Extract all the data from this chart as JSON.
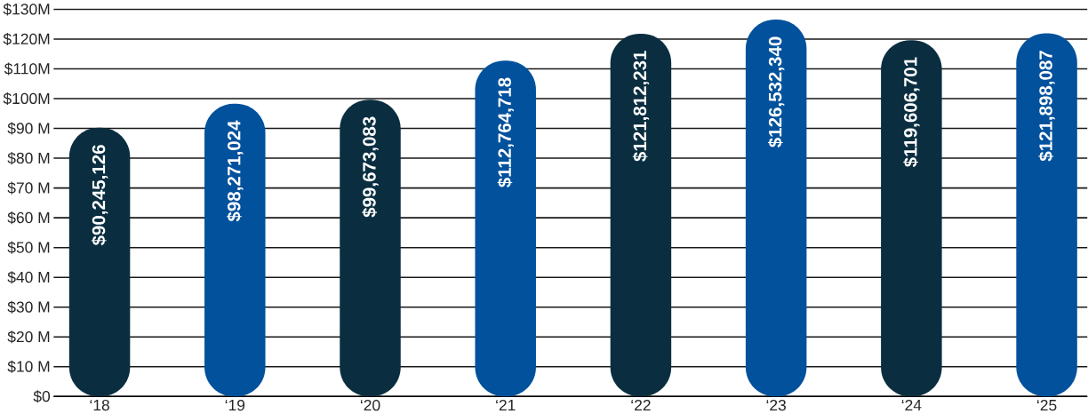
{
  "chart_data": {
    "type": "bar",
    "categories": [
      "‘18",
      "‘19",
      "‘20",
      "‘21",
      "‘22",
      "‘23",
      "‘24",
      "‘25"
    ],
    "values": [
      90245126,
      98271024,
      99673083,
      112764718,
      121812231,
      126532340,
      119606701,
      121898087
    ],
    "value_labels": [
      "$90,245,126",
      "$98,271,024",
      "$99,673,083",
      "$112,764,718",
      "$121,812,231",
      "$126,532,340",
      "$119,606,701",
      "$121,898,087"
    ],
    "colors": [
      "#0a2e40",
      "#02519c",
      "#0a2e40",
      "#02519c",
      "#0a2e40",
      "#02519c",
      "#0a2e40",
      "#02519c"
    ],
    "ylim": [
      0,
      130000000
    ],
    "yticks": [
      {
        "value": 0,
        "label": "$0"
      },
      {
        "value": 10000000,
        "label": "$10 M"
      },
      {
        "value": 20000000,
        "label": "$20 M"
      },
      {
        "value": 30000000,
        "label": "$30 M"
      },
      {
        "value": 40000000,
        "label": "$40 M"
      },
      {
        "value": 50000000,
        "label": "$50 M"
      },
      {
        "value": 60000000,
        "label": "$60 M"
      },
      {
        "value": 70000000,
        "label": "$70 M"
      },
      {
        "value": 80000000,
        "label": "$80 M"
      },
      {
        "value": 90000000,
        "label": "$90 M"
      },
      {
        "value": 100000000,
        "label": "$100M"
      },
      {
        "value": 110000000,
        "label": "$110M"
      },
      {
        "value": 120000000,
        "label": "$120M"
      },
      {
        "value": 130000000,
        "label": "$130M"
      }
    ],
    "grid": "y"
  }
}
